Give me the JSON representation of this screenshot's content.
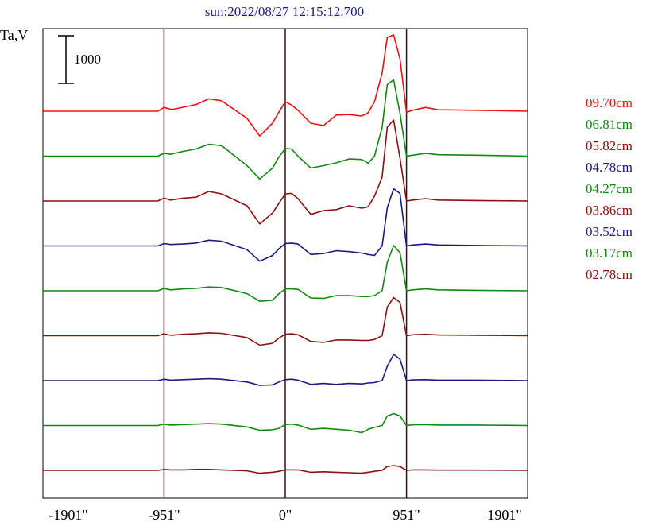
{
  "chart_data": {
    "type": "line",
    "title": "sun:2022/08/27 12:15:12.700",
    "ylabel": "Ta,V",
    "scale_bar_label": "1000",
    "xlim": [
      -1901,
      1901
    ],
    "x_ticks": [
      {
        "value": -1901,
        "label": "-1901\""
      },
      {
        "value": -951,
        "label": "-951\""
      },
      {
        "value": 0,
        "label": "0\""
      },
      {
        "value": 951,
        "label": "951\""
      },
      {
        "value": 1901,
        "label": "1901\""
      }
    ],
    "vertical_lines": [
      -951,
      0,
      951
    ],
    "series": [
      {
        "name": "09.70cm",
        "color": "#ee1111",
        "peak": 1600,
        "x": [
          -1901,
          -1000,
          -951,
          -900,
          -880,
          -700,
          -600,
          -500,
          -300,
          -200,
          -100,
          -50,
          0,
          50,
          100,
          200,
          300,
          400,
          500,
          600,
          650,
          700,
          760,
          800,
          850,
          900,
          951,
          1000,
          1100,
          1200,
          1500,
          1901
        ],
        "y": [
          0,
          0,
          80,
          40,
          40,
          140,
          260,
          220,
          -150,
          -520,
          -250,
          -20,
          200,
          130,
          20,
          -250,
          -300,
          -80,
          -70,
          -100,
          -30,
          200,
          800,
          1550,
          1600,
          1100,
          -20,
          20,
          80,
          30,
          20,
          0
        ]
      },
      {
        "name": "06.81cm",
        "color": "#118811",
        "peak": 1600,
        "x": [
          -1901,
          -1000,
          -951,
          -900,
          -800,
          -700,
          -600,
          -500,
          -300,
          -200,
          -100,
          -50,
          0,
          50,
          100,
          200,
          300,
          400,
          500,
          600,
          650,
          700,
          760,
          800,
          850,
          900,
          951,
          1000,
          1100,
          1200,
          1500,
          1901
        ],
        "y": [
          0,
          0,
          60,
          40,
          100,
          150,
          250,
          220,
          -200,
          -480,
          -250,
          -20,
          160,
          150,
          0,
          -250,
          -200,
          -140,
          -60,
          -70,
          -150,
          0,
          600,
          1500,
          1600,
          900,
          0,
          20,
          60,
          30,
          20,
          0
        ]
      },
      {
        "name": "05.82cm",
        "color": "#881111",
        "peak": 1700,
        "x": [
          -1901,
          -1000,
          -951,
          -900,
          -800,
          -700,
          -600,
          -500,
          -300,
          -200,
          -100,
          -50,
          0,
          50,
          100,
          200,
          300,
          400,
          500,
          600,
          650,
          700,
          760,
          800,
          850,
          900,
          951,
          1000,
          1100,
          1200,
          1500,
          1901
        ],
        "y": [
          0,
          0,
          60,
          20,
          60,
          80,
          200,
          150,
          -100,
          -480,
          -250,
          -50,
          150,
          160,
          50,
          -280,
          -200,
          -180,
          -100,
          -150,
          -120,
          100,
          500,
          1550,
          1700,
          900,
          0,
          20,
          50,
          20,
          10,
          0
        ]
      },
      {
        "name": "04.78cm",
        "color": "#1a1a80",
        "peak": 1200,
        "x": [
          -1901,
          -1000,
          -951,
          -900,
          -800,
          -700,
          -600,
          -500,
          -300,
          -200,
          -100,
          -50,
          0,
          50,
          100,
          200,
          300,
          400,
          500,
          600,
          650,
          700,
          760,
          800,
          850,
          900,
          951,
          1000,
          1100,
          1200,
          1500,
          1901
        ],
        "y": [
          0,
          0,
          50,
          30,
          40,
          60,
          120,
          100,
          -80,
          -320,
          -200,
          -60,
          50,
          60,
          40,
          -180,
          -160,
          -100,
          -120,
          -150,
          -180,
          -200,
          0,
          800,
          1200,
          1100,
          0,
          20,
          40,
          20,
          10,
          0
        ]
      },
      {
        "name": "04.27cm",
        "color": "#118811",
        "peak": 950,
        "x": [
          -1901,
          -1000,
          -951,
          -900,
          -800,
          -700,
          -600,
          -500,
          -300,
          -200,
          -100,
          -50,
          0,
          50,
          100,
          200,
          300,
          400,
          500,
          600,
          650,
          700,
          760,
          800,
          850,
          900,
          951,
          1000,
          1100,
          1200,
          1500,
          1901
        ],
        "y": [
          0,
          0,
          50,
          20,
          40,
          50,
          80,
          70,
          -60,
          -220,
          -200,
          -60,
          40,
          40,
          30,
          -150,
          -160,
          -100,
          -100,
          -120,
          -120,
          -100,
          0,
          600,
          950,
          800,
          0,
          20,
          40,
          20,
          10,
          0
        ]
      },
      {
        "name": "03.86cm",
        "color": "#881111",
        "peak": 800,
        "x": [
          -1901,
          -1000,
          -951,
          -900,
          -800,
          -700,
          -600,
          -500,
          -300,
          -200,
          -100,
          -50,
          0,
          50,
          100,
          200,
          300,
          400,
          500,
          600,
          650,
          700,
          760,
          800,
          850,
          900,
          951,
          1000,
          1100,
          1200,
          1500,
          1901
        ],
        "y": [
          0,
          0,
          40,
          10,
          30,
          40,
          60,
          50,
          -40,
          -200,
          -160,
          -50,
          30,
          40,
          20,
          -120,
          -140,
          -90,
          -90,
          -100,
          -100,
          -80,
          0,
          600,
          800,
          700,
          0,
          20,
          30,
          15,
          10,
          0
        ]
      },
      {
        "name": "03.52cm",
        "color": "#1a1a80",
        "peak": 550,
        "x": [
          -1901,
          -1000,
          -951,
          -900,
          -800,
          -700,
          -600,
          -500,
          -300,
          -200,
          -100,
          -50,
          0,
          50,
          100,
          200,
          300,
          400,
          500,
          600,
          650,
          700,
          760,
          800,
          850,
          900,
          951,
          1000,
          1100,
          1200,
          1500,
          1901
        ],
        "y": [
          0,
          0,
          30,
          10,
          20,
          30,
          40,
          30,
          -30,
          -100,
          -90,
          -30,
          20,
          30,
          10,
          -80,
          -60,
          -80,
          -60,
          -70,
          -50,
          -40,
          0,
          300,
          550,
          450,
          0,
          15,
          20,
          10,
          10,
          0
        ]
      },
      {
        "name": "03.17cm",
        "color": "#118811",
        "peak": 250,
        "x": [
          -1901,
          -1000,
          -951,
          -900,
          -800,
          -700,
          -600,
          -500,
          -300,
          -200,
          -100,
          -50,
          0,
          50,
          100,
          200,
          300,
          400,
          500,
          600,
          650,
          700,
          760,
          800,
          850,
          900,
          951,
          1000,
          1100,
          1200,
          1500,
          1901
        ],
        "y": [
          0,
          0,
          30,
          10,
          20,
          30,
          40,
          30,
          -30,
          -100,
          -90,
          -60,
          20,
          30,
          10,
          -80,
          -60,
          -80,
          -100,
          -150,
          -80,
          -40,
          0,
          200,
          250,
          200,
          0,
          15,
          20,
          10,
          10,
          0
        ]
      },
      {
        "name": "02.78cm",
        "color": "#881111",
        "peak": 100,
        "x": [
          -1901,
          -1000,
          -951,
          -900,
          -800,
          -700,
          -600,
          -500,
          -300,
          -200,
          -100,
          -50,
          0,
          50,
          100,
          200,
          300,
          400,
          500,
          600,
          650,
          700,
          760,
          800,
          850,
          900,
          951,
          1000,
          1100,
          1200,
          1500,
          1901
        ],
        "y": [
          0,
          0,
          20,
          10,
          10,
          20,
          20,
          10,
          -10,
          -60,
          -40,
          -20,
          10,
          10,
          10,
          -40,
          -30,
          -40,
          -50,
          -60,
          -40,
          -20,
          0,
          80,
          100,
          80,
          0,
          10,
          10,
          5,
          5,
          0
        ]
      }
    ]
  }
}
